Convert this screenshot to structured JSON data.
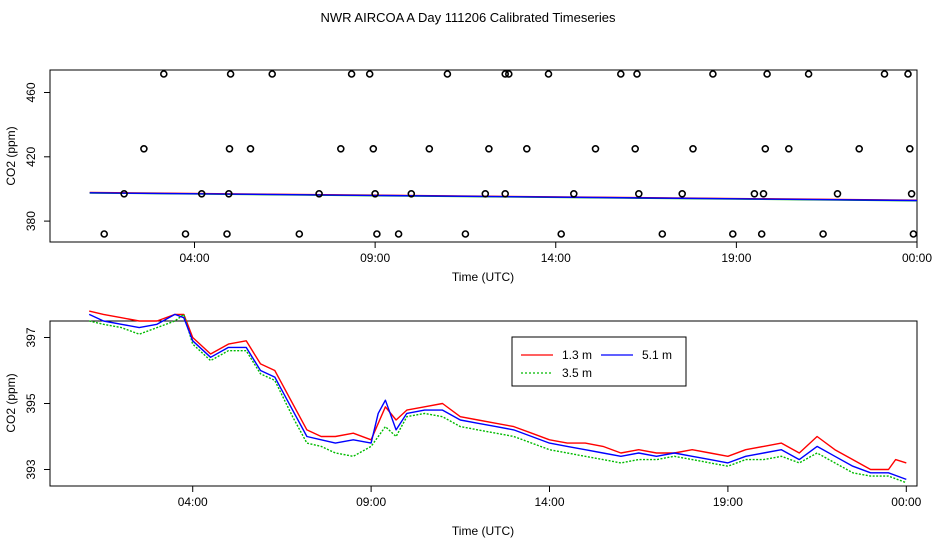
{
  "title": "NWR AIRCOA A  Day 111206  Calibrated Timeseries",
  "chart_data": [
    {
      "type": "scatter",
      "xlabel": "Time (UTC)",
      "ylabel": "CO2 (ppm)",
      "xlim": [
        0,
        24
      ],
      "ylim": [
        367,
        474
      ],
      "x_ticks": [
        4,
        9,
        14,
        19,
        24
      ],
      "x_tick_labels": [
        "04:00",
        "09:00",
        "14:00",
        "19:00",
        "00:00"
      ],
      "y_ticks": [
        380,
        420,
        460
      ],
      "y_tick_labels": [
        "380",
        "420",
        "460"
      ],
      "grid": false,
      "points": [
        [
          1.5,
          372
        ],
        [
          2.05,
          397
        ],
        [
          2.6,
          425
        ],
        [
          3.15,
          480
        ],
        [
          3.75,
          372
        ],
        [
          4.2,
          397
        ],
        [
          4.9,
          372
        ],
        [
          4.95,
          397
        ],
        [
          4.97,
          425
        ],
        [
          5.0,
          480
        ],
        [
          5.55,
          425
        ],
        [
          6.15,
          480
        ],
        [
          6.9,
          372
        ],
        [
          7.45,
          397
        ],
        [
          8.05,
          425
        ],
        [
          8.35,
          480
        ],
        [
          8.85,
          480
        ],
        [
          8.95,
          425
        ],
        [
          9.0,
          397
        ],
        [
          9.05,
          372
        ],
        [
          9.65,
          372
        ],
        [
          10.0,
          397
        ],
        [
          10.5,
          425
        ],
        [
          11.0,
          480
        ],
        [
          11.5,
          372
        ],
        [
          12.05,
          397
        ],
        [
          12.15,
          425
        ],
        [
          12.6,
          480
        ],
        [
          12.6,
          397
        ],
        [
          12.7,
          480
        ],
        [
          13.2,
          425
        ],
        [
          13.8,
          480
        ],
        [
          14.15,
          372
        ],
        [
          14.5,
          397
        ],
        [
          15.1,
          425
        ],
        [
          15.8,
          480
        ],
        [
          16.2,
          425
        ],
        [
          16.25,
          480
        ],
        [
          16.3,
          397
        ],
        [
          16.95,
          372
        ],
        [
          17.5,
          397
        ],
        [
          17.8,
          425
        ],
        [
          18.35,
          480
        ],
        [
          18.9,
          372
        ],
        [
          19.5,
          397
        ],
        [
          19.7,
          372
        ],
        [
          19.75,
          397
        ],
        [
          19.8,
          425
        ],
        [
          19.85,
          480
        ],
        [
          20.45,
          425
        ],
        [
          21.0,
          480
        ],
        [
          21.4,
          372
        ],
        [
          21.8,
          397
        ],
        [
          22.4,
          425
        ],
        [
          23.1,
          480
        ],
        [
          23.75,
          480
        ],
        [
          23.8,
          425
        ],
        [
          23.85,
          397
        ],
        [
          23.9,
          372
        ]
      ],
      "series": [
        {
          "name": "1.3 m",
          "color": "#ff0000",
          "x": [
            1.1,
            24
          ],
          "y": [
            397.8,
            393.0
          ]
        },
        {
          "name": "3.5 m",
          "color": "#00bb00",
          "x": [
            1.1,
            24
          ],
          "y": [
            397.5,
            392.6
          ]
        },
        {
          "name": "5.1 m",
          "color": "#0000ff",
          "x": [
            1.1,
            24
          ],
          "y": [
            397.6,
            392.8
          ]
        }
      ]
    },
    {
      "type": "line",
      "xlabel": "Time (UTC)",
      "ylabel": "CO2 (ppm)",
      "xlim": [
        0,
        24.3
      ],
      "ylim": [
        392.5,
        397.5
      ],
      "x_ticks": [
        4,
        9,
        14,
        19,
        24
      ],
      "x_tick_labels": [
        "04:00",
        "09:00",
        "14:00",
        "19:00",
        "00:00"
      ],
      "y_ticks": [
        393,
        395,
        397
      ],
      "y_tick_labels": [
        "393",
        "395",
        "397"
      ],
      "grid": false,
      "legend": {
        "placement": "top-center",
        "entries": [
          "1.3 m",
          "3.5 m",
          "5.1 m"
        ]
      },
      "series": [
        {
          "name": "1.3 m",
          "color": "#ff0000",
          "dash": false,
          "x": [
            1.1,
            1.5,
            2.0,
            2.5,
            3.0,
            3.5,
            3.75,
            4.0,
            4.5,
            5.0,
            5.5,
            5.9,
            6.3,
            6.8,
            7.2,
            7.6,
            8.0,
            8.5,
            9.0,
            9.4,
            9.7,
            10.0,
            10.5,
            11.0,
            11.5,
            12.0,
            12.5,
            13.0,
            13.5,
            14.0,
            14.5,
            15.0,
            15.5,
            16.0,
            16.5,
            17.0,
            17.5,
            18.0,
            18.5,
            19.0,
            19.5,
            20.0,
            20.5,
            21.0,
            21.5,
            22.0,
            22.5,
            23.0,
            23.5,
            23.7,
            24.0
          ],
          "y": [
            397.8,
            397.7,
            397.6,
            397.5,
            397.5,
            397.7,
            397.7,
            397.0,
            396.5,
            396.8,
            396.9,
            396.2,
            396.0,
            395.0,
            394.2,
            394.0,
            394.0,
            394.1,
            393.9,
            394.9,
            394.5,
            394.8,
            394.9,
            395.0,
            394.6,
            394.5,
            394.4,
            394.3,
            394.1,
            393.9,
            393.8,
            393.8,
            393.7,
            393.5,
            393.6,
            393.5,
            393.5,
            393.6,
            393.5,
            393.4,
            393.6,
            393.7,
            393.8,
            393.5,
            394.0,
            393.6,
            393.3,
            393.0,
            393.0,
            393.3,
            393.2
          ]
        },
        {
          "name": "3.5 m",
          "color": "#00bb00",
          "dash": true,
          "x": [
            1.1,
            1.5,
            2.0,
            2.5,
            3.0,
            3.5,
            3.75,
            4.0,
            4.5,
            5.0,
            5.5,
            5.9,
            6.3,
            6.8,
            7.2,
            7.6,
            8.0,
            8.5,
            9.0,
            9.4,
            9.7,
            10.0,
            10.5,
            11.0,
            11.5,
            12.0,
            12.5,
            13.0,
            13.5,
            14.0,
            14.5,
            15.0,
            15.5,
            16.0,
            16.5,
            17.0,
            17.5,
            18.0,
            18.5,
            19.0,
            19.5,
            20.0,
            20.5,
            21.0,
            21.5,
            22.0,
            22.5,
            23.0,
            23.5,
            24.0
          ],
          "y": [
            397.5,
            397.4,
            397.3,
            397.1,
            397.3,
            397.5,
            397.7,
            396.8,
            396.3,
            396.6,
            396.6,
            395.9,
            395.7,
            394.6,
            393.8,
            393.7,
            393.5,
            393.4,
            393.7,
            394.3,
            394.0,
            394.6,
            394.7,
            394.6,
            394.3,
            394.2,
            394.1,
            394.0,
            393.8,
            393.6,
            393.5,
            393.4,
            393.3,
            393.2,
            393.3,
            393.3,
            393.4,
            393.3,
            393.2,
            393.1,
            393.3,
            393.3,
            393.4,
            393.2,
            393.5,
            393.2,
            392.9,
            392.8,
            392.8,
            392.6
          ]
        },
        {
          "name": "5.1 m",
          "color": "#0000ff",
          "dash": false,
          "x": [
            1.1,
            1.5,
            2.0,
            2.5,
            3.0,
            3.5,
            3.75,
            4.0,
            4.5,
            5.0,
            5.5,
            5.9,
            6.3,
            6.8,
            7.2,
            7.6,
            8.0,
            8.5,
            9.0,
            9.2,
            9.4,
            9.7,
            10.0,
            10.5,
            11.0,
            11.5,
            12.0,
            12.5,
            13.0,
            13.5,
            14.0,
            14.5,
            15.0,
            15.5,
            16.0,
            16.5,
            17.0,
            17.5,
            18.0,
            18.5,
            19.0,
            19.5,
            20.0,
            20.5,
            21.0,
            21.5,
            22.0,
            22.5,
            23.0,
            23.5,
            24.0
          ],
          "y": [
            397.7,
            397.5,
            397.4,
            397.3,
            397.4,
            397.7,
            397.6,
            396.9,
            396.4,
            396.7,
            396.7,
            396.0,
            395.8,
            394.8,
            394.0,
            393.9,
            393.8,
            393.9,
            393.8,
            394.7,
            395.1,
            394.2,
            394.7,
            394.8,
            394.8,
            394.5,
            394.4,
            394.3,
            394.2,
            394.0,
            393.8,
            393.7,
            393.6,
            393.5,
            393.4,
            393.5,
            393.4,
            393.5,
            393.4,
            393.3,
            393.2,
            393.4,
            393.5,
            393.6,
            393.3,
            393.7,
            393.4,
            393.1,
            392.9,
            392.9,
            392.7
          ]
        }
      ]
    }
  ]
}
